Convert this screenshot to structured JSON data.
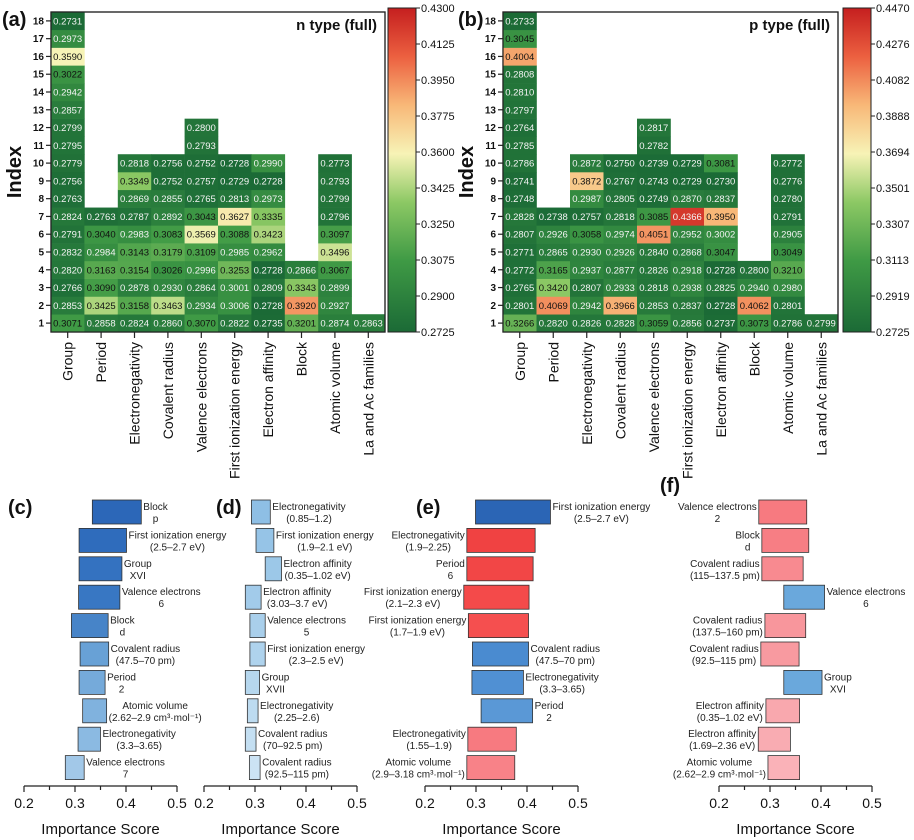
{
  "chart_data": [
    {
      "panel": "(a)",
      "type": "heatmap",
      "title": "n type (full)",
      "ylabel": "Index",
      "yticks": [
        1,
        2,
        3,
        4,
        5,
        6,
        7,
        8,
        9,
        10,
        11,
        12,
        13,
        14,
        15,
        16,
        17,
        18
      ],
      "colorbar": {
        "range": [
          0.2725,
          0.43
        ],
        "ticks": [
          "0.2725",
          "0.2900",
          "0.3075",
          "0.3250",
          "0.3425",
          "0.3600",
          "0.3775",
          "0.3950",
          "0.4125",
          "0.4300"
        ]
      },
      "columns": [
        {
          "name": "Group",
          "values": [
            0.3071,
            0.2853,
            0.2766,
            0.282,
            0.2832,
            0.2791,
            0.2824,
            0.2763,
            0.2756,
            0.2779,
            0.2795,
            0.2799,
            0.2857,
            0.2942,
            0.3022,
            0.359,
            0.2973,
            0.2731
          ]
        },
        {
          "name": "Period",
          "values": [
            0.2858,
            0.3425,
            0.309,
            0.3163,
            0.2984,
            0.304,
            0.2763
          ]
        },
        {
          "name": "Electronegativity",
          "values": [
            0.2824,
            0.3158,
            0.2878,
            0.3154,
            0.3143,
            0.2983,
            0.2787,
            0.2869,
            0.3349,
            0.2818
          ]
        },
        {
          "name": "Covalent radius",
          "values": [
            0.286,
            0.3463,
            0.293,
            0.3026,
            0.3179,
            0.3083,
            0.2892,
            0.2855,
            0.2752,
            0.2756
          ]
        },
        {
          "name": "Valence electrons",
          "values": [
            0.307,
            0.2934,
            0.2864,
            0.2996,
            0.3109,
            0.3569,
            0.3043,
            0.2765,
            0.2757,
            0.2752,
            0.2793,
            0.28
          ]
        },
        {
          "name": "First ionization energy",
          "values": [
            0.2822,
            0.3006,
            0.3001,
            0.3253,
            0.2985,
            0.3088,
            0.3627,
            0.2813,
            0.2729,
            0.2728
          ]
        },
        {
          "name": "Electron affinity",
          "values": [
            0.2735,
            0.2728,
            0.2809,
            0.2728,
            0.2962,
            0.3423,
            0.3335,
            0.2973,
            0.2728,
            0.299
          ]
        },
        {
          "name": "Block",
          "values": [
            0.3201,
            0.392,
            0.3343,
            0.2866
          ]
        },
        {
          "name": "Atomic volume",
          "values": [
            0.2874,
            0.2927,
            0.2899,
            0.3067,
            0.3496,
            0.3097,
            0.2796,
            0.2799,
            0.2793,
            0.2773
          ]
        },
        {
          "name": "La and Ac families",
          "values": [
            0.2863
          ]
        }
      ]
    },
    {
      "panel": "(b)",
      "type": "heatmap",
      "title": "p type (full)",
      "ylabel": "Index",
      "yticks": [
        1,
        2,
        3,
        4,
        5,
        6,
        7,
        8,
        9,
        10,
        11,
        12,
        13,
        14,
        15,
        16,
        17,
        18
      ],
      "colorbar": {
        "range": [
          0.2725,
          0.447
        ],
        "ticks": [
          "0.2725",
          "0.2919",
          "0.3113",
          "0.3307",
          "0.3501",
          "0.3694",
          "0.3888",
          "0.4082",
          "0.4276",
          "0.4470"
        ]
      },
      "columns": [
        {
          "name": "Group",
          "values": [
            0.3266,
            0.2801,
            0.2765,
            0.2772,
            0.2771,
            0.2807,
            0.2828,
            0.2748,
            0.2741,
            0.2786,
            0.2785,
            0.2764,
            0.2797,
            0.281,
            0.2808,
            0.4004,
            0.3045,
            0.2733
          ]
        },
        {
          "name": "Period",
          "values": [
            0.282,
            0.4069,
            0.342,
            0.3165,
            0.2865,
            0.2926,
            0.2738
          ]
        },
        {
          "name": "Electronegativity",
          "values": [
            0.2826,
            0.2942,
            0.2807,
            0.2937,
            0.293,
            0.3058,
            0.2757,
            0.2987,
            0.3872,
            0.2872
          ]
        },
        {
          "name": "Covalent radius",
          "values": [
            0.2828,
            0.3966,
            0.2933,
            0.2877,
            0.2926,
            0.2974,
            0.2818,
            0.2805,
            0.2767,
            0.275
          ]
        },
        {
          "name": "Valence electrons",
          "values": [
            0.3059,
            0.2853,
            0.2818,
            0.2826,
            0.284,
            0.4051,
            0.3085,
            0.2749,
            0.2743,
            0.2739,
            0.2782,
            0.2817
          ]
        },
        {
          "name": "First ionization energy",
          "values": [
            0.2856,
            0.2837,
            0.2938,
            0.2918,
            0.2868,
            0.2952,
            0.4366,
            0.287,
            0.2729,
            0.2729
          ]
        },
        {
          "name": "Electron affinity",
          "values": [
            0.2737,
            0.2728,
            0.2825,
            0.2728,
            0.3047,
            0.3002,
            0.395,
            0.2837,
            0.273,
            0.3081
          ]
        },
        {
          "name": "Block",
          "values": [
            0.3073,
            0.4062,
            0.294,
            0.28
          ]
        },
        {
          "name": "Atomic volume",
          "values": [
            0.2786,
            0.2801,
            0.298,
            0.321,
            0.3049,
            0.2905,
            0.2791,
            0.278,
            0.2776,
            0.2772
          ]
        },
        {
          "name": "La and Ac families",
          "values": [
            0.2799
          ]
        }
      ]
    },
    {
      "panel": "(c)",
      "type": "bar",
      "orientation": "horizontal-floating",
      "xlabel": "Importance Score",
      "xlim": [
        0.2,
        0.5
      ],
      "xticks": [
        "0.2",
        "0.3",
        "0.4",
        "0.5"
      ],
      "bars": [
        {
          "label": [
            "Block",
            "p"
          ],
          "start": 0.334,
          "end": 0.43,
          "color": "#2c67b8",
          "side": "right"
        },
        {
          "label": [
            "First ionization energy",
            "(2.5–2.7 eV)"
          ],
          "start": 0.308,
          "end": 0.401,
          "color": "#2f6cbc",
          "side": "right"
        },
        {
          "label": [
            "Group",
            "XVI"
          ],
          "start": 0.308,
          "end": 0.392,
          "color": "#3472c0",
          "side": "right"
        },
        {
          "label": [
            "Valence electrons",
            "6"
          ],
          "start": 0.307,
          "end": 0.388,
          "color": "#3877c3",
          "side": "right"
        },
        {
          "label": [
            "Block",
            "d"
          ],
          "start": 0.293,
          "end": 0.365,
          "color": "#4784c8",
          "side": "right"
        },
        {
          "label": [
            "Covalent radius",
            "(47.5–70 pm)"
          ],
          "start": 0.31,
          "end": 0.366,
          "color": "#68a1d6",
          "side": "right"
        },
        {
          "label": [
            "Period",
            "2"
          ],
          "start": 0.308,
          "end": 0.359,
          "color": "#75aada",
          "side": "right"
        },
        {
          "label": [
            "Atomic volume",
            "(2.62–2.9 cm³·mol⁻¹)"
          ],
          "start": 0.315,
          "end": 0.362,
          "color": "#80b2de",
          "side": "right"
        },
        {
          "label": [
            "Electronegativity",
            "(3.3–3.65)"
          ],
          "start": 0.306,
          "end": 0.35,
          "color": "#8bbae2",
          "side": "right"
        },
        {
          "label": [
            "Valence electrons",
            "7"
          ],
          "start": 0.281,
          "end": 0.318,
          "color": "#a2c8e8",
          "side": "right"
        }
      ]
    },
    {
      "panel": "(d)",
      "type": "bar",
      "orientation": "horizontal-floating",
      "xlabel": "Importance Score",
      "xlim": [
        0.2,
        0.5
      ],
      "xticks": [
        "0.2",
        "0.3",
        "0.4",
        "0.5"
      ],
      "bars": [
        {
          "label": [
            "Electronegativity",
            "(0.85–1.2)"
          ],
          "start": 0.293,
          "end": 0.33,
          "color": "#8ebfe5",
          "side": "right"
        },
        {
          "label": [
            "First ionization energy",
            "(1.9–2.1 eV)"
          ],
          "start": 0.302,
          "end": 0.337,
          "color": "#96c4e7",
          "side": "right"
        },
        {
          "label": [
            "Electron affinity",
            "(0.35–1.02 eV)"
          ],
          "start": 0.32,
          "end": 0.352,
          "color": "#9cc8e8",
          "side": "right"
        },
        {
          "label": [
            "Electron affinity",
            "(3.03–3.7 eV)"
          ],
          "start": 0.281,
          "end": 0.312,
          "color": "#a2cbea",
          "side": "right"
        },
        {
          "label": [
            "Valence electrons",
            "5"
          ],
          "start": 0.29,
          "end": 0.32,
          "color": "#a9cfeb",
          "side": "right"
        },
        {
          "label": [
            "First ionization energy",
            "(2.3–2.5 eV)"
          ],
          "start": 0.29,
          "end": 0.32,
          "color": "#afd3ed",
          "side": "right"
        },
        {
          "label": [
            "Group",
            "XVII"
          ],
          "start": 0.281,
          "end": 0.309,
          "color": "#b6d7ee",
          "side": "right"
        },
        {
          "label": [
            "Electronegativity",
            "(2.25–2.6)"
          ],
          "start": 0.285,
          "end": 0.306,
          "color": "#bddbf0",
          "side": "right"
        },
        {
          "label": [
            "Covalent radius",
            "(70–92.5 pm)"
          ],
          "start": 0.281,
          "end": 0.302,
          "color": "#c4dff2",
          "side": "right"
        },
        {
          "label": [
            "Covalent radius",
            "(92.5–115 pm)"
          ],
          "start": 0.289,
          "end": 0.31,
          "color": "#cce3f4",
          "side": "right"
        }
      ]
    },
    {
      "panel": "(e)",
      "type": "bar",
      "orientation": "horizontal-floating",
      "xlabel": "Importance Score",
      "xlim": [
        0.2,
        0.5
      ],
      "xticks": [
        "0.2",
        "0.3",
        "0.4",
        "0.5"
      ],
      "bars": [
        {
          "label": [
            "First ionization energy",
            "(2.5–2.7 eV)"
          ],
          "start": 0.299,
          "end": 0.446,
          "color": "#2b65b5",
          "side": "right"
        },
        {
          "label": [
            "Electronegativity",
            "(1.9–2.25)"
          ],
          "start": 0.282,
          "end": 0.416,
          "color": "#f04242",
          "side": "left"
        },
        {
          "label": [
            "Period",
            "6"
          ],
          "start": 0.282,
          "end": 0.412,
          "color": "#f24646",
          "side": "left"
        },
        {
          "label": [
            "First ionization energy",
            "(2.1–2.3 eV)"
          ],
          "start": 0.276,
          "end": 0.404,
          "color": "#f44a4a",
          "side": "left"
        },
        {
          "label": [
            "First ionization energy",
            "(1.7–1.9 eV)"
          ],
          "start": 0.285,
          "end": 0.403,
          "color": "#f54f4f",
          "side": "left"
        },
        {
          "label": [
            "Covalent radius",
            "(47.5–70 pm)"
          ],
          "start": 0.293,
          "end": 0.403,
          "color": "#4a8bd0",
          "side": "right"
        },
        {
          "label": [
            "Electronegativity",
            "(3.3–3.65)"
          ],
          "start": 0.292,
          "end": 0.393,
          "color": "#5090d3",
          "side": "right"
        },
        {
          "label": [
            "Period",
            "2"
          ],
          "start": 0.31,
          "end": 0.411,
          "color": "#5a98d6",
          "side": "right"
        },
        {
          "label": [
            "Electronegativity",
            "(1.55–1.9)"
          ],
          "start": 0.284,
          "end": 0.379,
          "color": "#f77a80",
          "side": "left"
        },
        {
          "label": [
            "Atomic volume",
            "(2.9–3.18 cm³·mol⁻¹)"
          ],
          "start": 0.282,
          "end": 0.376,
          "color": "#f88288",
          "side": "left"
        }
      ]
    },
    {
      "panel": "(f)",
      "type": "bar",
      "orientation": "horizontal-floating",
      "xlabel": "Importance Score",
      "xlim": [
        0.2,
        0.5
      ],
      "xticks": [
        "0.2",
        "0.3",
        "0.4",
        "0.5"
      ],
      "bars": [
        {
          "label": [
            "Valence electrons",
            "2"
          ],
          "start": 0.278,
          "end": 0.372,
          "color": "#f77a80",
          "side": "left"
        },
        {
          "label": [
            "Block",
            "d"
          ],
          "start": 0.284,
          "end": 0.376,
          "color": "#f77e84",
          "side": "left"
        },
        {
          "label": [
            "Covalent radius",
            "(115–137.5 pm)"
          ],
          "start": 0.284,
          "end": 0.365,
          "color": "#f88a90",
          "side": "left"
        },
        {
          "label": [
            "Valence electrons",
            "6"
          ],
          "start": 0.327,
          "end": 0.407,
          "color": "#6aa8dc",
          "side": "right"
        },
        {
          "label": [
            "Covalent radius",
            "(137.5–160 pm)"
          ],
          "start": 0.29,
          "end": 0.37,
          "color": "#f8969c",
          "side": "left"
        },
        {
          "label": [
            "Covalent radius",
            "(92.5–115 pm)"
          ],
          "start": 0.282,
          "end": 0.357,
          "color": "#f89aa0",
          "side": "left"
        },
        {
          "label": [
            "Group",
            "XVI"
          ],
          "start": 0.327,
          "end": 0.402,
          "color": "#6aa8dc",
          "side": "right"
        },
        {
          "label": [
            "Electron affinity",
            "(0.35–1.02 eV)"
          ],
          "start": 0.292,
          "end": 0.358,
          "color": "#f9a8ae",
          "side": "left"
        },
        {
          "label": [
            "Electron affinity",
            "(1.69–2.36 eV)"
          ],
          "start": 0.277,
          "end": 0.34,
          "color": "#f9acb2",
          "side": "left"
        },
        {
          "label": [
            "Atomic volume",
            "(2.62–2.9 cm³·mol⁻¹)"
          ],
          "start": 0.296,
          "end": 0.358,
          "color": "#fab2b8",
          "side": "left"
        }
      ]
    }
  ],
  "colormap": [
    "#1b6a36",
    "#3f9a45",
    "#8cc864",
    "#f7f3b6",
    "#f8b878",
    "#ec6040",
    "#c51f1f"
  ]
}
